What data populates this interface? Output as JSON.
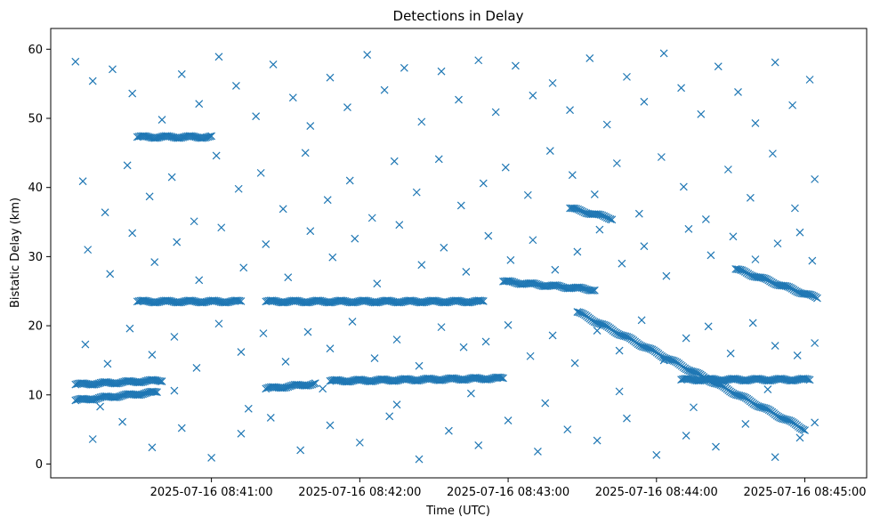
{
  "chart_data": {
    "type": "scatter",
    "title": "Detections in Delay",
    "xlabel": "Time (UTC)",
    "ylabel": "Bistatic Delay (km)",
    "x_type": "datetime",
    "xlim": [
      "2025-07-16 08:39:55",
      "2025-07-16 08:45:25"
    ],
    "ylim": [
      -2,
      63
    ],
    "x_ticks": [
      "2025-07-16 08:41:00",
      "2025-07-16 08:42:00",
      "2025-07-16 08:43:00",
      "2025-07-16 08:44:00",
      "2025-07-16 08:45:00"
    ],
    "y_ticks": [
      0,
      10,
      20,
      30,
      40,
      50,
      60
    ],
    "grid": false,
    "marker": "x",
    "color": "#1f77b4",
    "tracks": [
      {
        "x_start": "2025-07-16 08:40:30",
        "x_end": "2025-07-16 08:41:00",
        "y_start": 47.3,
        "y_end": 47.3
      },
      {
        "x_start": "2025-07-16 08:40:30",
        "x_end": "2025-07-16 08:41:12",
        "y_start": 23.5,
        "y_end": 23.5
      },
      {
        "x_start": "2025-07-16 08:41:22",
        "x_end": "2025-07-16 08:42:50",
        "y_start": 23.5,
        "y_end": 23.5
      },
      {
        "x_start": "2025-07-16 08:40:05",
        "x_end": "2025-07-16 08:40:40",
        "y_start": 11.5,
        "y_end": 12.1
      },
      {
        "x_start": "2025-07-16 08:40:05",
        "x_end": "2025-07-16 08:40:38",
        "y_start": 9.2,
        "y_end": 10.4
      },
      {
        "x_start": "2025-07-16 08:41:22",
        "x_end": "2025-07-16 08:41:42",
        "y_start": 10.9,
        "y_end": 11.6
      },
      {
        "x_start": "2025-07-16 08:41:48",
        "x_end": "2025-07-16 08:42:58",
        "y_start": 12.0,
        "y_end": 12.4
      },
      {
        "x_start": "2025-07-16 08:42:58",
        "x_end": "2025-07-16 08:43:35",
        "y_start": 26.4,
        "y_end": 25.2
      },
      {
        "x_start": "2025-07-16 08:43:25",
        "x_end": "2025-07-16 08:43:42",
        "y_start": 37.0,
        "y_end": 35.5
      },
      {
        "x_start": "2025-07-16 08:43:28",
        "x_end": "2025-07-16 08:45:00",
        "y_start": 22.0,
        "y_end": 5.0
      },
      {
        "x_start": "2025-07-16 08:44:32",
        "x_end": "2025-07-16 08:45:05",
        "y_start": 28.2,
        "y_end": 24.0
      },
      {
        "x_start": "2025-07-16 08:44:10",
        "x_end": "2025-07-16 08:45:02",
        "y_start": 12.2,
        "y_end": 12.2
      }
    ],
    "scattered_points": [
      [
        "2025-07-16 08:40:05",
        58.2
      ],
      [
        "2025-07-16 08:40:12",
        55.4
      ],
      [
        "2025-07-16 08:40:20",
        57.1
      ],
      [
        "2025-07-16 08:40:28",
        53.6
      ],
      [
        "2025-07-16 08:40:40",
        49.8
      ],
      [
        "2025-07-16 08:40:48",
        56.4
      ],
      [
        "2025-07-16 08:40:55",
        52.1
      ],
      [
        "2025-07-16 08:41:03",
        58.9
      ],
      [
        "2025-07-16 08:41:10",
        54.7
      ],
      [
        "2025-07-16 08:41:18",
        50.3
      ],
      [
        "2025-07-16 08:41:25",
        57.8
      ],
      [
        "2025-07-16 08:41:33",
        53.0
      ],
      [
        "2025-07-16 08:41:40",
        48.9
      ],
      [
        "2025-07-16 08:41:48",
        55.9
      ],
      [
        "2025-07-16 08:41:55",
        51.6
      ],
      [
        "2025-07-16 08:42:03",
        59.2
      ],
      [
        "2025-07-16 08:42:10",
        54.1
      ],
      [
        "2025-07-16 08:42:18",
        57.3
      ],
      [
        "2025-07-16 08:42:25",
        49.5
      ],
      [
        "2025-07-16 08:42:33",
        56.8
      ],
      [
        "2025-07-16 08:42:40",
        52.7
      ],
      [
        "2025-07-16 08:42:48",
        58.4
      ],
      [
        "2025-07-16 08:42:55",
        50.9
      ],
      [
        "2025-07-16 08:43:03",
        57.6
      ],
      [
        "2025-07-16 08:43:10",
        53.3
      ],
      [
        "2025-07-16 08:43:18",
        55.1
      ],
      [
        "2025-07-16 08:43:25",
        51.2
      ],
      [
        "2025-07-16 08:43:33",
        58.7
      ],
      [
        "2025-07-16 08:43:40",
        49.1
      ],
      [
        "2025-07-16 08:43:48",
        56.0
      ],
      [
        "2025-07-16 08:43:55",
        52.4
      ],
      [
        "2025-07-16 08:44:03",
        59.4
      ],
      [
        "2025-07-16 08:44:10",
        54.4
      ],
      [
        "2025-07-16 08:44:18",
        50.6
      ],
      [
        "2025-07-16 08:44:25",
        57.5
      ],
      [
        "2025-07-16 08:44:33",
        53.8
      ],
      [
        "2025-07-16 08:44:40",
        49.3
      ],
      [
        "2025-07-16 08:44:48",
        58.1
      ],
      [
        "2025-07-16 08:44:55",
        51.9
      ],
      [
        "2025-07-16 08:45:02",
        55.6
      ],
      [
        "2025-07-16 08:40:08",
        40.9
      ],
      [
        "2025-07-16 08:40:17",
        36.4
      ],
      [
        "2025-07-16 08:40:26",
        43.2
      ],
      [
        "2025-07-16 08:40:35",
        38.7
      ],
      [
        "2025-07-16 08:40:44",
        41.5
      ],
      [
        "2025-07-16 08:40:53",
        35.1
      ],
      [
        "2025-07-16 08:41:02",
        44.6
      ],
      [
        "2025-07-16 08:41:11",
        39.8
      ],
      [
        "2025-07-16 08:41:20",
        42.1
      ],
      [
        "2025-07-16 08:41:29",
        36.9
      ],
      [
        "2025-07-16 08:41:38",
        45.0
      ],
      [
        "2025-07-16 08:41:47",
        38.2
      ],
      [
        "2025-07-16 08:41:56",
        41.0
      ],
      [
        "2025-07-16 08:42:05",
        35.6
      ],
      [
        "2025-07-16 08:42:14",
        43.8
      ],
      [
        "2025-07-16 08:42:23",
        39.3
      ],
      [
        "2025-07-16 08:42:32",
        44.1
      ],
      [
        "2025-07-16 08:42:41",
        37.4
      ],
      [
        "2025-07-16 08:42:50",
        40.6
      ],
      [
        "2025-07-16 08:42:59",
        42.9
      ],
      [
        "2025-07-16 08:43:08",
        38.9
      ],
      [
        "2025-07-16 08:43:17",
        45.3
      ],
      [
        "2025-07-16 08:43:26",
        41.8
      ],
      [
        "2025-07-16 08:43:35",
        39.0
      ],
      [
        "2025-07-16 08:43:44",
        43.5
      ],
      [
        "2025-07-16 08:43:53",
        36.2
      ],
      [
        "2025-07-16 08:44:02",
        44.4
      ],
      [
        "2025-07-16 08:44:11",
        40.1
      ],
      [
        "2025-07-16 08:44:20",
        35.4
      ],
      [
        "2025-07-16 08:44:29",
        42.6
      ],
      [
        "2025-07-16 08:44:38",
        38.5
      ],
      [
        "2025-07-16 08:44:47",
        44.9
      ],
      [
        "2025-07-16 08:44:56",
        37.0
      ],
      [
        "2025-07-16 08:45:04",
        41.2
      ],
      [
        "2025-07-16 08:40:10",
        31.0
      ],
      [
        "2025-07-16 08:40:19",
        27.5
      ],
      [
        "2025-07-16 08:40:28",
        33.4
      ],
      [
        "2025-07-16 08:40:37",
        29.2
      ],
      [
        "2025-07-16 08:40:46",
        32.1
      ],
      [
        "2025-07-16 08:40:55",
        26.6
      ],
      [
        "2025-07-16 08:41:04",
        34.2
      ],
      [
        "2025-07-16 08:41:13",
        28.4
      ],
      [
        "2025-07-16 08:41:22",
        31.8
      ],
      [
        "2025-07-16 08:41:31",
        27.0
      ],
      [
        "2025-07-16 08:41:40",
        33.7
      ],
      [
        "2025-07-16 08:41:49",
        29.9
      ],
      [
        "2025-07-16 08:41:58",
        32.6
      ],
      [
        "2025-07-16 08:42:07",
        26.1
      ],
      [
        "2025-07-16 08:42:16",
        34.6
      ],
      [
        "2025-07-16 08:42:25",
        28.8
      ],
      [
        "2025-07-16 08:42:34",
        31.3
      ],
      [
        "2025-07-16 08:42:43",
        27.8
      ],
      [
        "2025-07-16 08:42:52",
        33.0
      ],
      [
        "2025-07-16 08:43:01",
        29.5
      ],
      [
        "2025-07-16 08:43:10",
        32.4
      ],
      [
        "2025-07-16 08:43:19",
        28.1
      ],
      [
        "2025-07-16 08:43:28",
        30.7
      ],
      [
        "2025-07-16 08:43:37",
        33.9
      ],
      [
        "2025-07-16 08:43:46",
        29.0
      ],
      [
        "2025-07-16 08:43:55",
        31.5
      ],
      [
        "2025-07-16 08:44:04",
        27.2
      ],
      [
        "2025-07-16 08:44:13",
        34.0
      ],
      [
        "2025-07-16 08:44:22",
        30.2
      ],
      [
        "2025-07-16 08:44:31",
        32.9
      ],
      [
        "2025-07-16 08:44:40",
        29.6
      ],
      [
        "2025-07-16 08:44:49",
        31.9
      ],
      [
        "2025-07-16 08:44:58",
        33.5
      ],
      [
        "2025-07-16 08:45:03",
        29.4
      ],
      [
        "2025-07-16 08:40:09",
        17.3
      ],
      [
        "2025-07-16 08:40:18",
        14.5
      ],
      [
        "2025-07-16 08:40:27",
        19.6
      ],
      [
        "2025-07-16 08:40:36",
        15.8
      ],
      [
        "2025-07-16 08:40:45",
        18.4
      ],
      [
        "2025-07-16 08:40:54",
        13.9
      ],
      [
        "2025-07-16 08:41:03",
        20.3
      ],
      [
        "2025-07-16 08:41:12",
        16.2
      ],
      [
        "2025-07-16 08:41:21",
        18.9
      ],
      [
        "2025-07-16 08:41:30",
        14.8
      ],
      [
        "2025-07-16 08:41:39",
        19.1
      ],
      [
        "2025-07-16 08:41:48",
        16.7
      ],
      [
        "2025-07-16 08:41:57",
        20.6
      ],
      [
        "2025-07-16 08:42:06",
        15.3
      ],
      [
        "2025-07-16 08:42:15",
        18.0
      ],
      [
        "2025-07-16 08:42:24",
        14.2
      ],
      [
        "2025-07-16 08:42:33",
        19.8
      ],
      [
        "2025-07-16 08:42:42",
        16.9
      ],
      [
        "2025-07-16 08:42:51",
        17.7
      ],
      [
        "2025-07-16 08:43:00",
        20.1
      ],
      [
        "2025-07-16 08:43:09",
        15.6
      ],
      [
        "2025-07-16 08:43:18",
        18.6
      ],
      [
        "2025-07-16 08:43:27",
        14.6
      ],
      [
        "2025-07-16 08:43:36",
        19.3
      ],
      [
        "2025-07-16 08:43:45",
        16.4
      ],
      [
        "2025-07-16 08:43:54",
        20.8
      ],
      [
        "2025-07-16 08:44:03",
        15.0
      ],
      [
        "2025-07-16 08:44:12",
        18.2
      ],
      [
        "2025-07-16 08:44:21",
        19.9
      ],
      [
        "2025-07-16 08:44:30",
        16.0
      ],
      [
        "2025-07-16 08:44:39",
        20.4
      ],
      [
        "2025-07-16 08:44:48",
        17.1
      ],
      [
        "2025-07-16 08:44:57",
        15.7
      ],
      [
        "2025-07-16 08:45:04",
        17.5
      ],
      [
        "2025-07-16 08:40:12",
        3.6
      ],
      [
        "2025-07-16 08:40:24",
        6.1
      ],
      [
        "2025-07-16 08:40:36",
        2.4
      ],
      [
        "2025-07-16 08:40:48",
        5.2
      ],
      [
        "2025-07-16 08:41:00",
        0.9
      ],
      [
        "2025-07-16 08:41:12",
        4.4
      ],
      [
        "2025-07-16 08:41:24",
        6.7
      ],
      [
        "2025-07-16 08:41:36",
        2.0
      ],
      [
        "2025-07-16 08:41:48",
        5.6
      ],
      [
        "2025-07-16 08:42:00",
        3.1
      ],
      [
        "2025-07-16 08:42:12",
        6.9
      ],
      [
        "2025-07-16 08:42:24",
        0.7
      ],
      [
        "2025-07-16 08:42:36",
        4.8
      ],
      [
        "2025-07-16 08:42:48",
        2.7
      ],
      [
        "2025-07-16 08:43:00",
        6.3
      ],
      [
        "2025-07-16 08:43:12",
        1.8
      ],
      [
        "2025-07-16 08:43:24",
        5.0
      ],
      [
        "2025-07-16 08:43:36",
        3.4
      ],
      [
        "2025-07-16 08:43:48",
        6.6
      ],
      [
        "2025-07-16 08:44:00",
        1.3
      ],
      [
        "2025-07-16 08:44:12",
        4.1
      ],
      [
        "2025-07-16 08:44:24",
        2.5
      ],
      [
        "2025-07-16 08:44:36",
        5.8
      ],
      [
        "2025-07-16 08:44:48",
        1.0
      ],
      [
        "2025-07-16 08:44:58",
        3.8
      ],
      [
        "2025-07-16 08:45:04",
        6.0
      ],
      [
        "2025-07-16 08:40:15",
        8.3
      ],
      [
        "2025-07-16 08:40:45",
        10.6
      ],
      [
        "2025-07-16 08:41:15",
        8.0
      ],
      [
        "2025-07-16 08:41:45",
        10.9
      ],
      [
        "2025-07-16 08:42:15",
        8.6
      ],
      [
        "2025-07-16 08:42:45",
        10.2
      ],
      [
        "2025-07-16 08:43:15",
        8.8
      ],
      [
        "2025-07-16 08:43:45",
        10.5
      ],
      [
        "2025-07-16 08:44:15",
        8.2
      ],
      [
        "2025-07-16 08:44:45",
        10.8
      ]
    ]
  }
}
